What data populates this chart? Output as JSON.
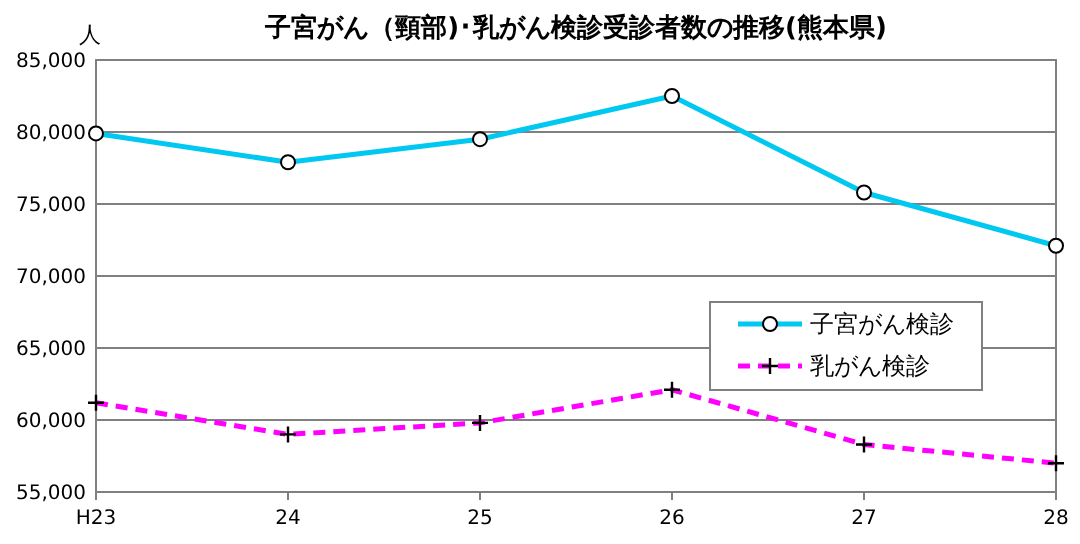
{
  "chart_data": {
    "type": "line",
    "title": "子宮がん（頸部)･乳がん検診受診者数の推移(熊本県)",
    "ylabel": "人",
    "categories": [
      "H23",
      "24",
      "25",
      "26",
      "27",
      "28"
    ],
    "series": [
      {
        "name": "子宮がん検診",
        "color": "#00c8f0",
        "marker": "circle",
        "line_style": "solid",
        "values": [
          79900,
          77900,
          79500,
          82500,
          75800,
          72100
        ]
      },
      {
        "name": "乳がん検診",
        "color": "#ff00ff",
        "marker": "cross",
        "line_style": "dashed",
        "values": [
          61200,
          59000,
          59800,
          62100,
          58300,
          57000
        ]
      }
    ],
    "ylim": [
      55000,
      85000
    ],
    "yticks": [
      {
        "value": 55000,
        "label": "55,000"
      },
      {
        "value": 60000,
        "label": "60,000"
      },
      {
        "value": 65000,
        "label": "65,000"
      },
      {
        "value": 70000,
        "label": "70,000"
      },
      {
        "value": 75000,
        "label": "75,000"
      },
      {
        "value": 80000,
        "label": "80,000"
      },
      {
        "value": 85000,
        "label": "85,000"
      }
    ],
    "grid": "y",
    "legend": "right"
  }
}
